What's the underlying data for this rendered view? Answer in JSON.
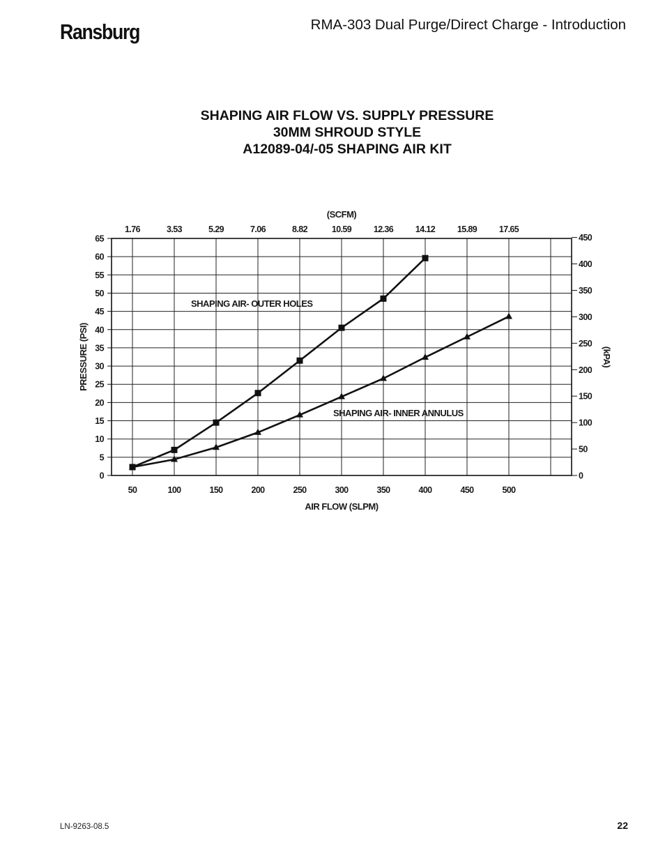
{
  "header": {
    "logo": "Ransburg",
    "doc_title": "RMA-303 Dual Purge/Direct Charge - Introduction"
  },
  "footer": {
    "doc_number": "LN-9263-08.5",
    "page_number": "22"
  },
  "chart_data": {
    "type": "line",
    "title_lines": [
      "SHAPING AIR FLOW VS. SUPPLY PRESSURE",
      "30MM SHROUD STYLE",
      "A12089-04/-05 SHAPING AIR KIT"
    ],
    "xlabel": "AIR FLOW (SLPM)",
    "ylabel": "PRESSURE (PSI)",
    "x2label": "(SCFM)",
    "y2label": "(kPA)",
    "xlim": [
      25,
      575
    ],
    "ylim": [
      0,
      65
    ],
    "x_ticks": [
      50,
      100,
      150,
      200,
      250,
      300,
      350,
      400,
      450,
      500
    ],
    "y_ticks": [
      0,
      5,
      10,
      15,
      20,
      25,
      30,
      35,
      40,
      45,
      50,
      55,
      60,
      65
    ],
    "scfm_ticks": [
      "1.76",
      "3.53",
      "5.29",
      "7.06",
      "8.82",
      "10.59",
      "12.36",
      "14.12",
      "15.89",
      "17.65"
    ],
    "kpa_ticks": [
      0,
      50,
      100,
      150,
      200,
      250,
      300,
      350,
      400,
      450
    ],
    "grid": true,
    "series": [
      {
        "name": "SHAPING AIR- OUTER HOLES",
        "marker": "square",
        "x": [
          50,
          100,
          150,
          200,
          250,
          300,
          350,
          400
        ],
        "y": [
          2.3,
          7.0,
          14.5,
          22.6,
          31.5,
          40.5,
          48.5,
          59.6
        ]
      },
      {
        "name": "SHAPING AIR- INNER ANNULUS",
        "marker": "triangle",
        "x": [
          50,
          100,
          150,
          200,
          250,
          300,
          350,
          400,
          450,
          500
        ],
        "y": [
          2.3,
          4.4,
          7.7,
          11.8,
          16.6,
          21.6,
          26.6,
          32.4,
          38.0,
          43.6
        ]
      }
    ]
  }
}
